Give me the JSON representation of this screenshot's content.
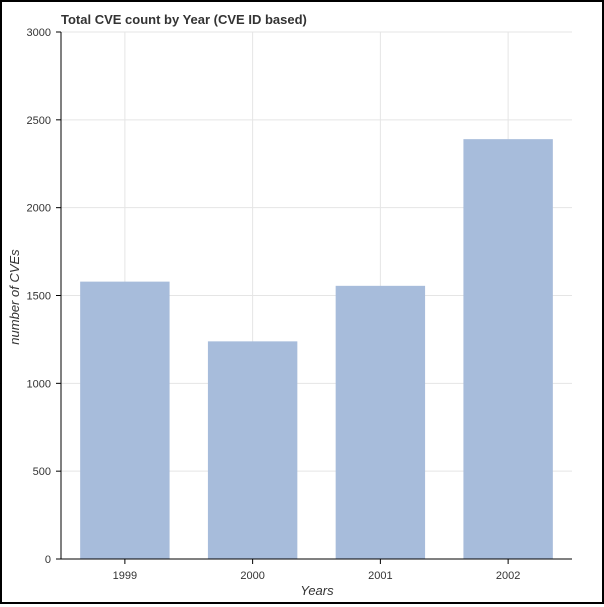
{
  "chart_data": {
    "type": "bar",
    "title": "Total CVE count by Year (CVE ID based)",
    "xlabel": "Years",
    "ylabel": "number of CVEs",
    "categories": [
      "1999",
      "2000",
      "2001",
      "2002"
    ],
    "values": [
      1579,
      1239,
      1555,
      2390
    ],
    "ylim": [
      0,
      3000
    ],
    "yticks": [
      0,
      500,
      1000,
      1500,
      2000,
      2500,
      3000
    ],
    "grid": true,
    "bar_color": "#a7bcdb",
    "grid_color": "#e5e5e5",
    "axis_color": "#000000"
  }
}
